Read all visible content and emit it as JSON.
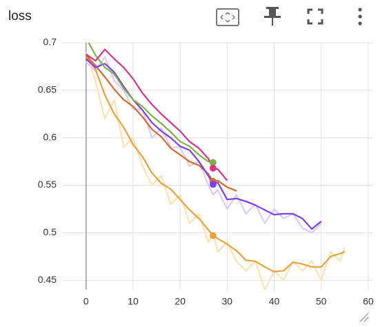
{
  "chart_data": {
    "type": "line",
    "title": "loss",
    "x": [
      0,
      2,
      4,
      6,
      8,
      10,
      12,
      14,
      16,
      18,
      20,
      22,
      24,
      26,
      27,
      28,
      30,
      32,
      34,
      36,
      38,
      40,
      42,
      44,
      46,
      48,
      50,
      52,
      54,
      55
    ],
    "series": [
      {
        "color": "#fde3b0",
        "values": [
          0.69,
          0.66,
          0.62,
          0.64,
          0.59,
          0.6,
          0.57,
          0.55,
          0.56,
          0.53,
          0.54,
          0.51,
          0.52,
          0.49,
          0.5,
          0.48,
          0.49,
          0.47,
          0.46,
          0.47,
          0.44,
          0.46,
          0.45,
          0.47,
          0.46,
          0.47,
          0.45,
          0.48,
          0.47,
          0.485
        ]
      },
      {
        "color": "#dccbfa",
        "values": [
          0.68,
          0.67,
          0.685,
          0.66,
          0.65,
          0.63,
          0.63,
          0.6,
          0.61,
          0.59,
          0.59,
          0.57,
          0.575,
          0.55,
          0.54,
          0.545,
          0.525,
          0.54,
          0.52,
          0.53,
          0.51,
          0.525,
          0.515,
          0.52,
          0.505,
          0.5,
          0.51,
          null,
          null,
          null
        ]
      },
      {
        "color": "#e9a23b",
        "values": [
          0.686,
          0.672,
          0.645,
          0.625,
          0.611,
          0.593,
          0.58,
          0.563,
          0.552,
          0.546,
          0.535,
          0.524,
          0.515,
          0.503,
          0.497,
          0.494,
          0.488,
          0.481,
          0.471,
          0.47,
          0.464,
          0.459,
          0.46,
          0.469,
          0.467,
          0.464,
          0.464,
          0.475,
          0.478,
          0.48
        ]
      },
      {
        "color": "#d9692b",
        "values": [
          0.687,
          0.676,
          0.664,
          0.651,
          0.64,
          0.633,
          0.622,
          0.609,
          0.601,
          0.589,
          0.582,
          0.575,
          0.571,
          0.562,
          0.554,
          0.555,
          0.548,
          0.544,
          null,
          null,
          null,
          null,
          null,
          null,
          null,
          null,
          null,
          null,
          null,
          null
        ]
      },
      {
        "color": "#7e3ff2",
        "values": [
          0.683,
          0.674,
          0.678,
          0.669,
          0.654,
          0.64,
          0.629,
          0.616,
          0.607,
          0.6,
          0.591,
          0.587,
          0.575,
          0.56,
          0.551,
          0.553,
          0.535,
          0.536,
          0.533,
          0.529,
          0.524,
          0.519,
          0.52,
          0.52,
          0.515,
          0.504,
          0.512,
          null,
          null,
          null
        ]
      },
      {
        "color": "#7cb342",
        "values": [
          0.705,
          0.687,
          0.674,
          0.667,
          0.652,
          0.64,
          0.633,
          0.623,
          0.615,
          0.606,
          0.596,
          0.591,
          0.582,
          0.575,
          0.574,
          null,
          null,
          null,
          null,
          null,
          null,
          null,
          null,
          null,
          null,
          null,
          null,
          null,
          null,
          null
        ]
      },
      {
        "color": "#d6338a",
        "values": [
          0.688,
          0.681,
          0.693,
          0.683,
          0.674,
          0.662,
          0.647,
          0.635,
          0.625,
          0.616,
          0.607,
          0.596,
          0.589,
          0.578,
          0.568,
          0.567,
          0.555,
          null,
          null,
          null,
          null,
          null,
          null,
          null,
          null,
          null,
          null,
          null,
          null,
          null
        ]
      }
    ],
    "highlight_x": 27,
    "xlim": [
      -5.1,
      60.9
    ],
    "xticks": [
      0,
      10,
      20,
      30,
      40,
      50,
      60
    ],
    "ylim": [
      0.44,
      0.7
    ],
    "yticks": [
      0.45,
      0.5,
      0.55,
      0.6,
      0.65,
      0.7
    ],
    "grid": true
  }
}
